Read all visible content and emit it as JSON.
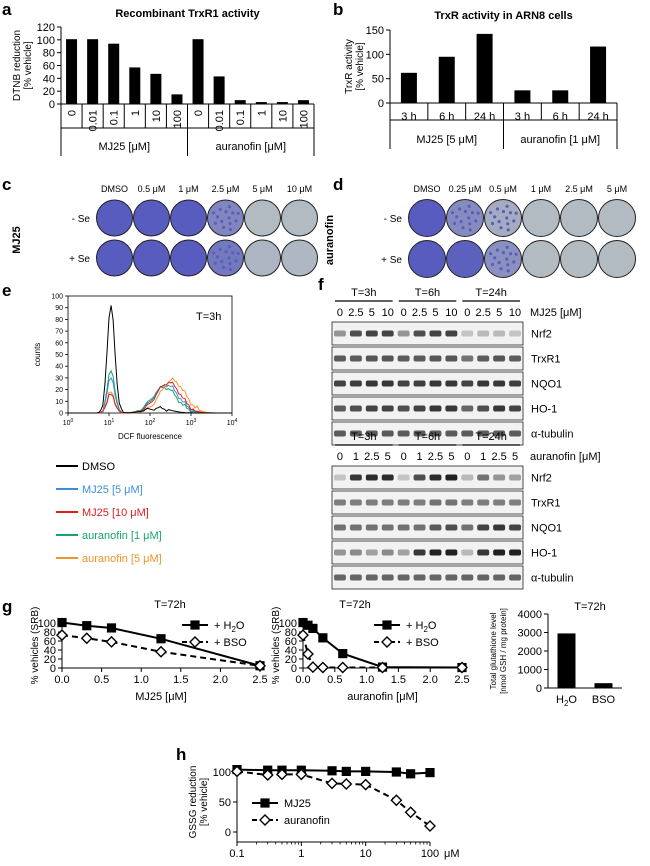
{
  "panel_labels": {
    "a": "a",
    "b": "b",
    "c": "c",
    "d": "d",
    "e": "e",
    "f": "f",
    "g": "g",
    "h": "h"
  },
  "chart_data": [
    {
      "id": "a",
      "type": "bar",
      "title": "Recombinant TrxR1 activity",
      "ylabel": [
        "DTNB reduction",
        "[% vehicle]"
      ],
      "ylim": [
        0,
        120
      ],
      "yticks": [
        0,
        20,
        40,
        60,
        80,
        100,
        120
      ],
      "categories": [
        "0",
        "0.01",
        "0.1",
        "1",
        "10",
        "100",
        "0",
        "0.01",
        "0.1",
        "1",
        "10",
        "100"
      ],
      "values": [
        101,
        101,
        94,
        57,
        47,
        15,
        101,
        43,
        6,
        3,
        3,
        6
      ],
      "groups": [
        {
          "label": "MJ25 [μM]",
          "count": 6
        },
        {
          "label": "auranofin [μM]",
          "count": 6
        }
      ]
    },
    {
      "id": "b",
      "type": "bar",
      "title": "TrxR activity in ARN8 cells",
      "ylabel": [
        "TrxR activity",
        "[% vehicle]"
      ],
      "ylim": [
        0,
        150
      ],
      "yticks": [
        0,
        50,
        100,
        150
      ],
      "categories": [
        "3 h",
        "6 h",
        "24 h",
        "3 h",
        "6 h",
        "24 h"
      ],
      "values": [
        62,
        95,
        142,
        26,
        26,
        116
      ],
      "groups": [
        {
          "label": "MJ25 [5 μM]",
          "count": 3
        },
        {
          "label": "auranofin [1 μM]",
          "count": 3
        }
      ]
    },
    {
      "id": "g1",
      "type": "line",
      "title": "T=72h",
      "xlabel": "MJ25 [μM]",
      "ylabel": "% vehicles (SRB)",
      "xlim": [
        0,
        2.5
      ],
      "ylim": [
        0,
        100
      ],
      "xticks": [
        0,
        0.5,
        1,
        1.5,
        2,
        2.5
      ],
      "xtick_labels": [
        "0.0",
        "0.5",
        "1.0",
        "1.5",
        "2.0",
        "2.5"
      ],
      "yticks": [
        0,
        20,
        40,
        60,
        80,
        100
      ],
      "series": [
        {
          "name": "+ H2O",
          "x": [
            0,
            0.3125,
            0.625,
            1.25,
            2.5
          ],
          "y": [
            101,
            94,
            89,
            65,
            5
          ]
        },
        {
          "name": "+ BSO",
          "x": [
            0,
            0.3125,
            0.625,
            1.25,
            2.5
          ],
          "y": [
            73,
            66,
            58,
            36,
            5
          ]
        }
      ]
    },
    {
      "id": "g2",
      "type": "line",
      "title": "T=72h",
      "xlabel": "auranofin [μM]",
      "ylabel": "% vehicles (SRB)",
      "xlim": [
        0,
        2.5
      ],
      "ylim": [
        0,
        100
      ],
      "xticks": [
        0,
        0.5,
        1,
        1.5,
        2,
        2.5
      ],
      "xtick_labels": [
        "0.0",
        "0.5",
        "1.0",
        "1.5",
        "2.0",
        "2.5"
      ],
      "yticks": [
        0,
        20,
        40,
        60,
        80,
        100
      ],
      "series": [
        {
          "name": "+ H2O",
          "x": [
            0,
            0.078,
            0.156,
            0.3125,
            0.625,
            1.25,
            2.5
          ],
          "y": [
            101,
            95,
            88,
            67,
            32,
            2,
            1
          ]
        },
        {
          "name": "+ BSO",
          "x": [
            0,
            0.078,
            0.156,
            0.3125,
            0.625,
            1.25,
            2.5
          ],
          "y": [
            73,
            31,
            2,
            1,
            1,
            1,
            1
          ]
        }
      ]
    },
    {
      "id": "g3",
      "type": "bar",
      "title": "T=72h",
      "ylabel": [
        "Total glutathione level",
        "[nmol GSH / mg protein]"
      ],
      "ylim": [
        0,
        4000
      ],
      "yticks": [
        0,
        1000,
        2000,
        3000,
        4000
      ],
      "categories": [
        "H2O",
        "BSO"
      ],
      "values": [
        2950,
        260
      ]
    },
    {
      "id": "h",
      "type": "line",
      "ylabel": [
        "GSSG reduction",
        "[% vehicle]"
      ],
      "xunit": "μM",
      "xscale": "log",
      "xlim": [
        0.1,
        100
      ],
      "ylim": [
        0,
        100
      ],
      "xticks": [
        0.1,
        1,
        10,
        100
      ],
      "xtick_labels": [
        "0.1",
        "1",
        "10",
        "100"
      ],
      "yticks": [
        0,
        50,
        100
      ],
      "series": [
        {
          "name": "MJ25",
          "x": [
            0.1,
            0.3,
            0.5,
            1,
            3,
            5,
            10,
            30,
            50,
            100
          ],
          "y": [
            104,
            103,
            103,
            103,
            102,
            101,
            101,
            100,
            97,
            99
          ]
        },
        {
          "name": "auranofin",
          "x": [
            0.1,
            0.3,
            0.5,
            1,
            3,
            5,
            10,
            30,
            50,
            100
          ],
          "y": [
            101,
            95,
            96,
            96,
            81,
            80,
            79,
            53,
            33,
            10
          ]
        }
      ]
    }
  ],
  "panel_c": {
    "side_label": "MJ25",
    "conditions": [
      "DMSO",
      "0.5 μM",
      "1 μM",
      "2.5 μM",
      "5 μM",
      "10 μM"
    ],
    "rows": [
      "- Se",
      "+ Se"
    ],
    "stain": [
      [
        1,
        1,
        1,
        0.55,
        0,
        0
      ],
      [
        1,
        1,
        1,
        0.7,
        0.05,
        0.03
      ]
    ]
  },
  "panel_d": {
    "side_label": "auranofin",
    "conditions": [
      "DMSO",
      "0.25 μM",
      "0.5 μM",
      "1 μM",
      "2.5 μM",
      "5 μM"
    ],
    "rows": [
      "- Se",
      "+ Se"
    ],
    "stain": [
      [
        1,
        0.5,
        0.15,
        0,
        0,
        0
      ],
      [
        1,
        0.95,
        0.45,
        0,
        0,
        0
      ]
    ]
  },
  "panel_e": {
    "time": "T=3h",
    "xlabel": "DCF fluorescence",
    "ylabel": "counts",
    "yticks": [
      0,
      10,
      20,
      30,
      40,
      50,
      60,
      70,
      80,
      90,
      100
    ],
    "xticks": [
      "10",
      "10",
      "10",
      "10",
      "10"
    ],
    "xtick_exponents": [
      "0",
      "1",
      "2",
      "3",
      "4"
    ],
    "legend": [
      {
        "label": "DMSO",
        "color": "#000000"
      },
      {
        "label": "MJ25 [5 μM]",
        "color": "#3b8fd8"
      },
      {
        "label": "MJ25 [10 μM]",
        "color": "#d92020"
      },
      {
        "label": "auranofin [1 μM]",
        "color": "#18a56a"
      },
      {
        "label": "auranofin [5 μM]",
        "color": "#f0922b"
      }
    ]
  },
  "panel_f": {
    "top": {
      "times": [
        "T=3h",
        "T=6h",
        "T=24h"
      ],
      "doses": [
        "0",
        "2.5",
        "5",
        "10",
        "0",
        "2.5",
        "5",
        "10",
        "0",
        "2.5",
        "5",
        "10"
      ],
      "treatment": "MJ25 [μM]",
      "proteins": [
        "Nrf2",
        "TrxR1",
        "NQO1",
        "HO-1",
        "α-tubulin"
      ],
      "intensity": [
        [
          0.45,
          0.75,
          0.8,
          0.8,
          0.45,
          0.75,
          0.8,
          0.8,
          0.25,
          0.3,
          0.3,
          0.25
        ],
        [
          0.7,
          0.7,
          0.72,
          0.72,
          0.7,
          0.7,
          0.72,
          0.72,
          0.6,
          0.7,
          0.72,
          0.7
        ],
        [
          0.8,
          0.82,
          0.85,
          0.85,
          0.8,
          0.82,
          0.85,
          0.85,
          0.8,
          0.85,
          0.85,
          0.82
        ],
        [
          0.7,
          0.75,
          0.8,
          0.8,
          0.75,
          0.8,
          0.85,
          0.85,
          0.65,
          0.75,
          0.85,
          0.8
        ],
        [
          0.7,
          0.7,
          0.7,
          0.7,
          0.7,
          0.7,
          0.7,
          0.7,
          0.7,
          0.7,
          0.7,
          0.7
        ]
      ]
    },
    "bottom": {
      "times": [
        "T=3h",
        "T=6h",
        "T=24h"
      ],
      "doses": [
        "0",
        "1",
        "2.5",
        "5",
        "0",
        "1",
        "2.5",
        "5",
        "0",
        "1",
        "2.5",
        "5"
      ],
      "treatment": "auranofin [μM]",
      "proteins": [
        "Nrf2",
        "TrxR1",
        "NQO1",
        "HO-1",
        "α-tubulin"
      ],
      "intensity": [
        [
          0.25,
          0.85,
          0.9,
          0.9,
          0.25,
          0.75,
          0.9,
          0.95,
          0.3,
          0.6,
          0.45,
          0.4
        ],
        [
          0.55,
          0.55,
          0.55,
          0.55,
          0.55,
          0.55,
          0.6,
          0.6,
          0.55,
          0.55,
          0.55,
          0.55
        ],
        [
          0.6,
          0.6,
          0.6,
          0.6,
          0.6,
          0.6,
          0.7,
          0.75,
          0.6,
          0.8,
          0.85,
          0.8
        ],
        [
          0.45,
          0.5,
          0.4,
          0.5,
          0.4,
          0.85,
          0.95,
          0.95,
          0.3,
          0.85,
          0.95,
          0.95
        ],
        [
          0.65,
          0.65,
          0.65,
          0.65,
          0.65,
          0.65,
          0.65,
          0.65,
          0.65,
          0.65,
          0.65,
          0.65
        ]
      ]
    }
  }
}
